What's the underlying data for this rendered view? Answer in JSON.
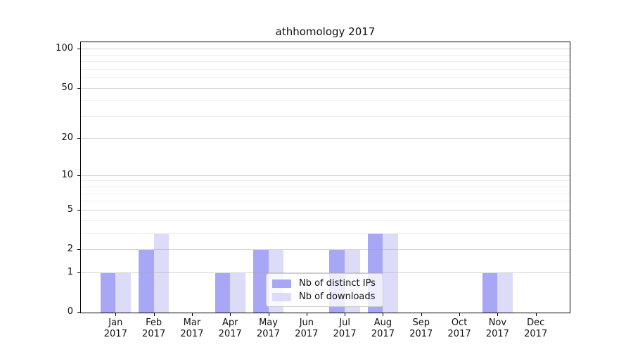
{
  "chart_data": {
    "type": "bar",
    "title": "athhomology 2017",
    "categories": [
      "Jan",
      "Feb",
      "Mar",
      "Apr",
      "May",
      "Jun",
      "Jul",
      "Aug",
      "Sep",
      "Oct",
      "Nov",
      "Dec"
    ],
    "category_year": "2017",
    "series": [
      {
        "name": "Nb of distinct IPs",
        "color": "#a7a7f5",
        "values": [
          1,
          2,
          0,
          1,
          2,
          0,
          2,
          3,
          0,
          0,
          1,
          0
        ]
      },
      {
        "name": "Nb of downloads",
        "color": "#dcdcf9",
        "values": [
          1,
          3,
          0,
          1,
          2,
          0,
          2,
          3,
          0,
          0,
          1,
          0
        ]
      }
    ],
    "y_axis": {
      "scale": "log1p",
      "major_ticks": [
        0,
        1,
        2,
        5,
        10,
        20,
        50,
        100
      ],
      "minor_ticks": [
        3,
        4,
        6,
        7,
        8,
        9,
        30,
        40,
        60,
        70,
        80,
        90
      ],
      "ylim": [
        0,
        114
      ]
    },
    "xlabel": "",
    "ylabel": "",
    "grid": true,
    "legend_position": "lower-center"
  },
  "colors": {
    "axis": "#000000",
    "text": "#111111",
    "grid_major": "#d9d9d9",
    "grid_minor": "#ececec",
    "legend_border": "#cccccc"
  }
}
